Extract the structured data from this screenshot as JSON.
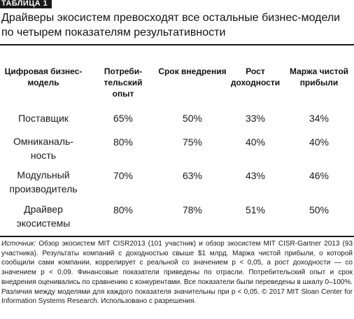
{
  "table_label": "ТАБЛИЦА 1",
  "title": "Драйверы экосистем превосходят все остальные бизнес-модели по четырем показателям результативности",
  "headers": [
    "Цифровая бизнес-модель",
    "Потреби- тельский опыт",
    "Срок внедрения",
    "Рост доходности",
    "Маржа чистой прибыли"
  ],
  "rows": [
    {
      "name": "Поставщик",
      "values": [
        "65%",
        "50%",
        "33%",
        "34%"
      ]
    },
    {
      "name": "Омниканаль- ность",
      "values": [
        "80%",
        "75%",
        "40%",
        "40%"
      ]
    },
    {
      "name": "Модульный производитель",
      "values": [
        "70%",
        "63%",
        "43%",
        "46%"
      ]
    },
    {
      "name": "Драйвер экосистемы",
      "values": [
        "80%",
        "78%",
        "51%",
        "50%"
      ]
    }
  ],
  "note": {
    "label": "Источник:",
    "text": "Обзор экосистем MIT CISR2013 (101 участник) и обзор экосистем MIT CISR-Gartner 2013 (93 участника). Результаты компаний с доходностью свыше $1 млрд. Маржа чистой прибыли, о которой сообщили сами компании, коррелирует с реальной со значением p < 0,05, а рост доходности — со значением p < 0,09. Финансовые показатели приведены по отрасли. Потребительский опыт и срок внедрения оценивались по сравнению с конкурентами. Все показатели были переведены в шкалу 0–100%. Различия между моделями для каждого показателя значительны при p < 0,05. © 2017 MIT Sloan Center for Information Systems Research. Использовано с разрешения."
  }
}
